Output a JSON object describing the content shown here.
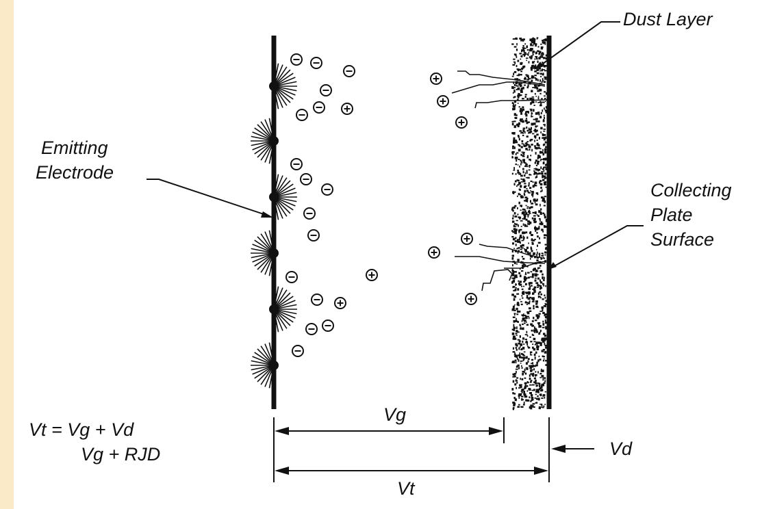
{
  "labels": {
    "dust_layer": "Dust Layer",
    "emitting_electrode": [
      "Emitting",
      "Electrode"
    ],
    "collecting_plate": [
      "Collecting",
      "Plate",
      "Surface"
    ],
    "vg": "Vg",
    "vt": "Vt",
    "vd": "Vd"
  },
  "equations": {
    "line1": "Vt = Vg + Vd",
    "line2": "Vg + RJD"
  },
  "colors": {
    "background": "#fbeac8",
    "panel": "#ffffff",
    "ink": "#111111"
  },
  "ions": {
    "negative_symbol": "negative-ion",
    "positive_symbol": "positive-ion"
  }
}
